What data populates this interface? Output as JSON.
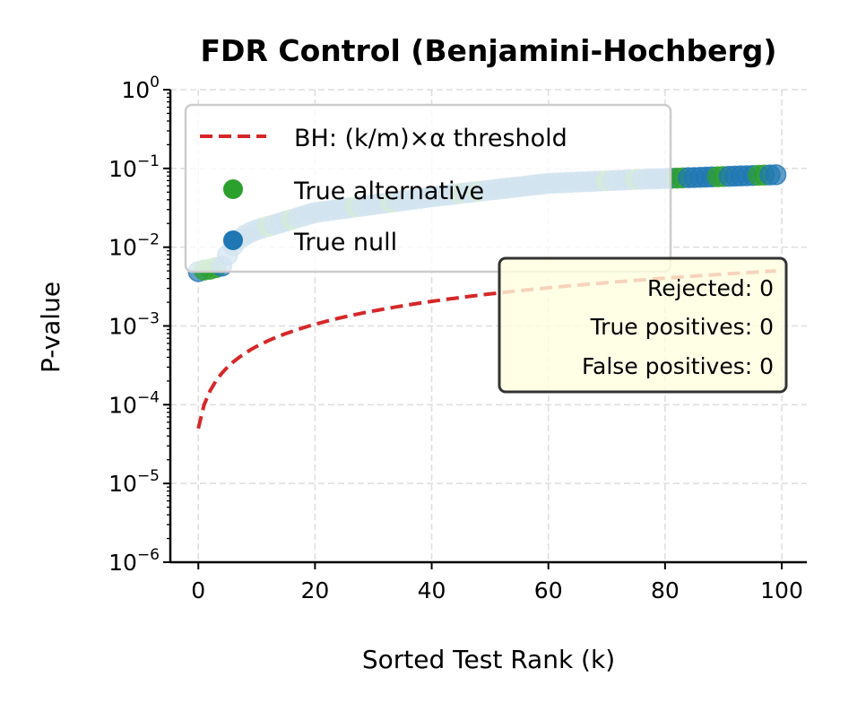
{
  "chart_data": {
    "type": "scatter",
    "title": "FDR Control (Benjamini-Hochberg)",
    "xlabel": "Sorted Test Rank (k)",
    "ylabel": "P-value",
    "xlim": [
      -4.8,
      104.3
    ],
    "ylim": [
      1e-06,
      1
    ],
    "yscale": "log",
    "grid": true,
    "legend_position": "upper-left",
    "xticks": [
      0,
      20,
      40,
      60,
      80,
      100
    ],
    "xtick_labels": [
      "0",
      "20",
      "40",
      "60",
      "80",
      "100"
    ],
    "yticks": [
      1,
      0.1,
      0.01,
      0.001,
      0.0001,
      1e-05,
      1e-06
    ],
    "ytick_base": "10",
    "ytick_exponents": [
      "0",
      "−1",
      "−2",
      "−3",
      "−4",
      "−5",
      "−6"
    ],
    "colors": {
      "threshold": "#d62728",
      "alternative": "#2ca02c",
      "null": "#1f77b4"
    },
    "legend": [
      {
        "label": "BH: (k/m)×α threshold",
        "kind": "line",
        "color": "#d62728"
      },
      {
        "label": "True alternative",
        "kind": "marker",
        "color": "#2ca02c"
      },
      {
        "label": "True null",
        "kind": "marker",
        "color": "#1f77b4"
      }
    ],
    "threshold": [
      5e-05,
      0.0001,
      0.00015,
      0.0002,
      0.00025,
      0.0003,
      0.00035,
      0.0004,
      0.00045,
      0.0005,
      0.00055,
      0.0006,
      0.00065,
      0.0007,
      0.00075,
      0.0008,
      0.00085,
      0.0009,
      0.00095,
      0.001,
      0.00105,
      0.0011,
      0.00115,
      0.0012,
      0.00125,
      0.0013,
      0.00135,
      0.0014,
      0.00145,
      0.0015,
      0.00155,
      0.0016,
      0.00165,
      0.0017,
      0.00175,
      0.0018,
      0.00185,
      0.0019,
      0.00195,
      0.002,
      0.00205,
      0.0021,
      0.00215,
      0.0022,
      0.00225,
      0.0023,
      0.00235,
      0.0024,
      0.00245,
      0.0025,
      0.00255,
      0.0026,
      0.00265,
      0.0027,
      0.00275,
      0.0028,
      0.00285,
      0.0029,
      0.00295,
      0.003,
      0.00305,
      0.0031,
      0.00315,
      0.0032,
      0.00325,
      0.0033,
      0.00335,
      0.0034,
      0.00345,
      0.0035,
      0.00355,
      0.0036,
      0.00365,
      0.0037,
      0.00375,
      0.0038,
      0.00385,
      0.0039,
      0.00395,
      0.004,
      0.00405,
      0.0041,
      0.00415,
      0.0042,
      0.00425,
      0.0043,
      0.00435,
      0.0044,
      0.00445,
      0.0045,
      0.00455,
      0.0046,
      0.00465,
      0.0047,
      0.00475,
      0.0048,
      0.00485,
      0.0049,
      0.00495,
      0.005
    ],
    "p_values": [
      0.0049,
      0.00513,
      0.00525,
      0.0055,
      0.00575,
      0.00794,
      0.0105,
      0.0126,
      0.0141,
      0.0155,
      0.0166,
      0.0175,
      0.0184,
      0.0193,
      0.0203,
      0.0214,
      0.0225,
      0.0237,
      0.0249,
      0.0262,
      0.0275,
      0.0282,
      0.0288,
      0.0295,
      0.0302,
      0.0309,
      0.0316,
      0.0324,
      0.0331,
      0.0339,
      0.0347,
      0.0355,
      0.0363,
      0.0372,
      0.038,
      0.0389,
      0.0398,
      0.0407,
      0.0417,
      0.0427,
      0.0437,
      0.0445,
      0.0454,
      0.0463,
      0.0472,
      0.0481,
      0.0491,
      0.0501,
      0.0511,
      0.0521,
      0.0531,
      0.0541,
      0.0552,
      0.0563,
      0.0574,
      0.0585,
      0.0597,
      0.0609,
      0.0621,
      0.0633,
      0.0646,
      0.0651,
      0.0656,
      0.0661,
      0.0666,
      0.0671,
      0.0676,
      0.0681,
      0.0687,
      0.0692,
      0.0697,
      0.0703,
      0.0708,
      0.0713,
      0.0719,
      0.0724,
      0.0728,
      0.0733,
      0.0737,
      0.0741,
      0.0746,
      0.075,
      0.0754,
      0.0759,
      0.0763,
      0.0767,
      0.0772,
      0.0776,
      0.0781,
      0.0785,
      0.079,
      0.0794,
      0.0799,
      0.0804,
      0.0808,
      0.0813,
      0.0818,
      0.0822,
      0.0827,
      0.0832
    ],
    "true_alternative_ranks": [
      1,
      2,
      3,
      12,
      16,
      27,
      33,
      45,
      48,
      70,
      75,
      82,
      83,
      89,
      90,
      96,
      97
    ],
    "annotation": [
      "Rejected: 0",
      "True positives: 0",
      "False positives: 0"
    ]
  }
}
